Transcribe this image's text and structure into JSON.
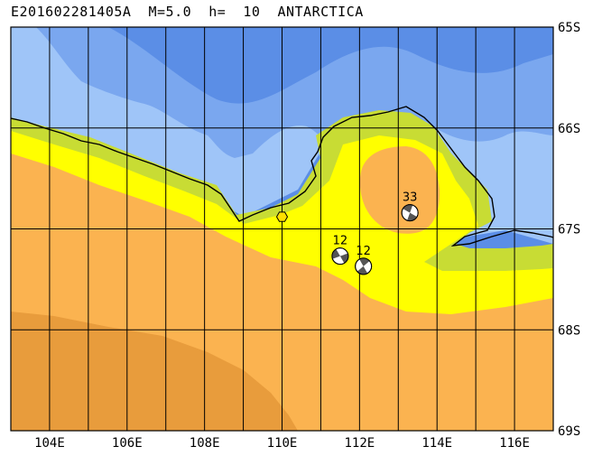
{
  "header": {
    "title": "E201602281405A  M=5.0  h=  10  ANTARCTICA"
  },
  "map": {
    "lon_range": [
      103,
      117
    ],
    "lat_range": [
      -69,
      -65
    ],
    "lon_ticks": [
      "104E",
      "106E",
      "108E",
      "110E",
      "112E",
      "114E",
      "116E"
    ],
    "lat_ticks": [
      "65S",
      "66S",
      "67S",
      "68S",
      "69S"
    ],
    "colors": {
      "deep_ocean": "#5b8ee6",
      "mid_ocean": "#7aa7ef",
      "shallow_ocean": "#9fc5f8",
      "land_green": "#c8dc34",
      "land_yellow": "#ffff00",
      "land_orange": "#fbb350",
      "land_dark_orange": "#e89c3c",
      "epicenter": "#ffe000"
    },
    "epicenter": {
      "lon": 110.0,
      "lat": -66.88,
      "icon": "hexagon-epicenter-icon"
    }
  },
  "mechanisms": [
    {
      "label": "33",
      "lon": 113.3,
      "lat": -66.84
    },
    {
      "label": "12",
      "lon": 111.5,
      "lat": -67.27
    },
    {
      "label": "12",
      "lon": 112.1,
      "lat": -67.37
    }
  ]
}
